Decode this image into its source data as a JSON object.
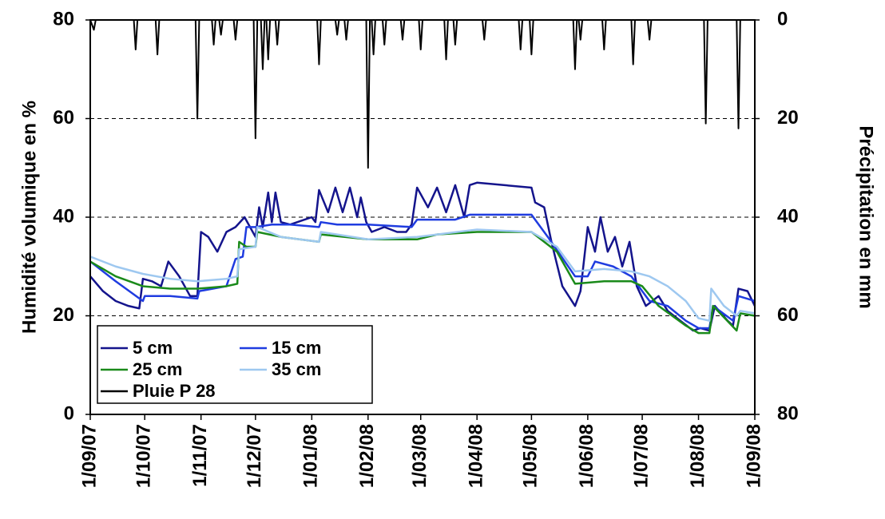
{
  "chart_data": {
    "type": "line",
    "y_label": "Humidité volumique en %",
    "y2_label": "Précipitation en mm",
    "xlim": [
      "1/09/07",
      "1/09/08"
    ],
    "xticks": [
      "1/09/07",
      "1/10/07",
      "1/11/07",
      "1/12/07",
      "1/01/08",
      "1/02/08",
      "1/03/08",
      "1/04/08",
      "1/05/08",
      "1/06/08",
      "1/07/08",
      "1/08/08",
      "1/09/08"
    ],
    "ylim": [
      0,
      80
    ],
    "yticks": [
      0,
      20,
      40,
      60,
      80
    ],
    "y2lim": [
      80,
      0
    ],
    "y2ticks": [
      0,
      20,
      40,
      60,
      80
    ],
    "grid": true,
    "legend": "lower left",
    "series": [
      {
        "name": "5 cm",
        "color": "#14148c",
        "x": [
          "1/09/07",
          "8/09/07",
          "15/09/07",
          "22/09/07",
          "28/09/07",
          "30/09/07",
          "5/10/07",
          "10/10/07",
          "14/10/07",
          "20/10/07",
          "26/10/07",
          "30/10/07",
          "1/11/07",
          "5/11/07",
          "10/11/07",
          "15/11/07",
          "20/11/07",
          "25/11/07",
          "28/11/07",
          "1/12/07",
          "3/12/07",
          "5/12/07",
          "8/12/07",
          "10/12/07",
          "12/12/07",
          "15/12/07",
          "20/12/07",
          "1/01/08",
          "3/01/08",
          "5/01/08",
          "10/01/08",
          "14/01/08",
          "18/01/08",
          "22/01/08",
          "26/01/08",
          "28/01/08",
          "31/01/08",
          "3/02/08",
          "10/02/08",
          "17/02/08",
          "22/02/08",
          "25/02/08",
          "28/02/08",
          "5/03/08",
          "10/03/08",
          "15/03/08",
          "20/03/08",
          "25/03/08",
          "28/03/08",
          "1/04/08",
          "1/05/08",
          "3/05/08",
          "8/05/08",
          "12/05/08",
          "18/05/08",
          "25/05/08",
          "28/05/08",
          "1/06/08",
          "5/06/08",
          "8/06/08",
          "12/06/08",
          "16/06/08",
          "20/06/08",
          "24/06/08",
          "28/06/08",
          "3/07/08",
          "10/07/08",
          "15/07/08",
          "22/07/08",
          "29/07/08",
          "2/08/08",
          "7/08/08",
          "10/08/08",
          "17/08/08",
          "20/08/08",
          "23/08/08",
          "28/08/08",
          "1/09/08"
        ],
        "values": [
          28,
          25,
          23,
          22,
          21.5,
          27.5,
          27,
          26,
          31,
          28,
          24,
          24,
          37,
          36,
          33,
          37,
          38,
          40,
          38,
          36,
          42,
          38,
          45,
          39,
          45,
          39,
          38.5,
          40,
          39,
          45.5,
          41,
          46,
          41,
          46,
          40,
          44,
          39,
          37,
          38,
          37,
          37,
          38.5,
          46,
          42,
          46,
          41,
          46.5,
          40,
          46.5,
          47,
          46,
          43,
          42,
          35,
          26,
          22,
          25,
          38,
          33,
          40,
          33,
          36,
          30,
          35,
          26,
          22,
          24,
          21,
          19,
          17,
          17.5,
          17,
          22,
          19,
          18,
          25.5,
          25,
          22
        ]
      },
      {
        "name": "15 cm",
        "color": "#1f3ce0",
        "x": [
          "1/09/07",
          "15/09/07",
          "30/09/07",
          "1/10/07",
          "15/10/07",
          "30/10/07",
          "31/10/07",
          "15/11/07",
          "20/11/07",
          "24/11/07",
          "26/11/07",
          "1/12/07",
          "10/12/07",
          "20/12/07",
          "5/01/08",
          "6/01/08",
          "15/01/08",
          "1/02/08",
          "25/02/08",
          "28/02/08",
          "20/03/08",
          "28/03/08",
          "1/05/08",
          "10/05/08",
          "25/05/08",
          "1/06/08",
          "5/06/08",
          "15/06/08",
          "25/06/08",
          "5/07/08",
          "15/07/08",
          "25/07/08",
          "1/08/08",
          "7/08/08",
          "9/08/08",
          "20/08/08",
          "23/08/08",
          "1/09/08"
        ],
        "values": [
          31,
          27,
          23,
          24,
          24,
          23.5,
          25,
          26,
          31.5,
          32,
          38,
          38,
          38.5,
          38.5,
          38,
          39,
          38.5,
          38.5,
          38,
          39.5,
          39.5,
          40.5,
          40.5,
          36,
          28,
          28,
          31,
          30,
          28,
          23,
          22,
          19,
          17.5,
          17.5,
          22,
          19,
          24,
          23
        ]
      },
      {
        "name": "25 cm",
        "color": "#1a8a1a",
        "x": [
          "1/09/07",
          "15/09/07",
          "30/09/07",
          "15/10/07",
          "30/10/07",
          "15/11/07",
          "21/11/07",
          "22/11/07",
          "26/11/07",
          "1/12/07",
          "2/12/07",
          "15/12/07",
          "5/01/08",
          "6/01/08",
          "1/02/08",
          "28/02/08",
          "10/03/08",
          "1/04/08",
          "1/05/08",
          "15/05/08",
          "25/05/08",
          "10/06/08",
          "25/06/08",
          "1/07/08",
          "10/07/08",
          "25/07/08",
          "1/08/08",
          "7/08/08",
          "9/08/08",
          "22/08/08",
          "24/08/08",
          "1/09/08"
        ],
        "values": [
          31,
          28,
          26,
          25.5,
          25.5,
          26,
          26.5,
          35,
          34,
          34,
          37,
          36,
          35,
          36.5,
          35.5,
          35.5,
          36.5,
          37,
          37,
          33,
          26.5,
          27,
          27,
          26,
          22,
          18,
          16.5,
          16.5,
          22,
          17,
          20.5,
          20
        ]
      },
      {
        "name": "35 cm",
        "color": "#9ec8f0",
        "x": [
          "1/09/07",
          "15/09/07",
          "30/09/07",
          "15/10/07",
          "30/10/07",
          "15/11/07",
          "21/11/07",
          "22/11/07",
          "1/12/07",
          "2/12/07",
          "15/12/07",
          "5/01/08",
          "6/01/08",
          "1/02/08",
          "28/02/08",
          "1/04/08",
          "1/05/08",
          "15/05/08",
          "25/05/08",
          "10/06/08",
          "25/06/08",
          "5/07/08",
          "15/07/08",
          "25/07/08",
          "1/08/08",
          "7/08/08",
          "8/08/08",
          "15/08/08",
          "22/08/08",
          "24/08/08",
          "1/09/08"
        ],
        "values": [
          32,
          30,
          28.5,
          27.5,
          27,
          27.5,
          28,
          33.5,
          34,
          38,
          36,
          35,
          37,
          35.5,
          36,
          37.5,
          37,
          34,
          29,
          29.5,
          29,
          28,
          26,
          23,
          19.5,
          19,
          25.5,
          22,
          20,
          21,
          20.5
        ]
      },
      {
        "name": "Pluie P 28",
        "color": "#000000",
        "axis": "y2",
        "x": [
          "1/09/07",
          "3/09/07",
          "4/09/07",
          "25/09/07",
          "26/09/07",
          "27/09/07",
          "7/10/07",
          "8/10/07",
          "9/10/07",
          "29/10/07",
          "30/10/07",
          "31/10/07",
          "7/11/07",
          "8/11/07",
          "9/11/07",
          "11/11/07",
          "12/11/07",
          "13/11/07",
          "19/11/07",
          "20/11/07",
          "21/11/07",
          "30/11/07",
          "1/12/07",
          "2/12/07",
          "4/12/07",
          "5/12/07",
          "6/12/07",
          "7/12/07",
          "8/12/07",
          "9/12/07",
          "12/12/07",
          "13/12/07",
          "14/12/07",
          "4/01/08",
          "5/01/08",
          "6/01/08",
          "14/01/08",
          "15/01/08",
          "16/01/08",
          "19/01/08",
          "20/01/08",
          "21/01/08",
          "31/01/08",
          "1/02/08",
          "2/02/08",
          "3/02/08",
          "4/02/08",
          "5/02/08",
          "9/02/08",
          "10/02/08",
          "11/02/08",
          "19/02/08",
          "20/02/08",
          "21/02/08",
          "29/02/08",
          "1/03/08",
          "2/03/08",
          "14/03/08",
          "15/03/08",
          "16/03/08",
          "19/03/08",
          "20/03/08",
          "21/03/08",
          "4/04/08",
          "5/04/08",
          "6/04/08",
          "24/04/08",
          "25/04/08",
          "26/04/08",
          "30/04/08",
          "1/05/08",
          "2/05/08",
          "24/05/08",
          "25/05/08",
          "26/05/08",
          "27/05/08",
          "28/05/08",
          "29/05/08",
          "9/06/08",
          "10/06/08",
          "11/06/08",
          "25/06/08",
          "26/06/08",
          "27/06/08",
          "4/07/08",
          "5/07/08",
          "6/07/08",
          "4/08/08",
          "5/08/08",
          "6/08/08",
          "22/08/08",
          "23/08/08",
          "24/08/08",
          "1/09/08"
        ],
        "values": [
          0,
          2,
          0,
          0,
          6,
          0,
          0,
          7,
          0,
          0,
          20,
          0,
          0,
          5,
          0,
          0,
          3,
          0,
          0,
          4,
          0,
          0,
          24,
          0,
          0,
          10,
          0,
          0,
          8,
          0,
          0,
          5,
          0,
          0,
          9,
          0,
          0,
          3,
          0,
          0,
          4,
          0,
          0,
          30,
          0,
          0,
          7,
          0,
          0,
          5,
          0,
          0,
          4,
          0,
          0,
          6,
          0,
          0,
          8,
          0,
          0,
          5,
          0,
          0,
          4,
          0,
          0,
          6,
          0,
          0,
          7,
          0,
          0,
          10,
          0,
          0,
          4,
          0,
          0,
          6,
          0,
          0,
          9,
          0,
          0,
          4,
          0,
          0,
          21,
          0,
          0,
          22,
          0,
          0
        ]
      }
    ]
  }
}
